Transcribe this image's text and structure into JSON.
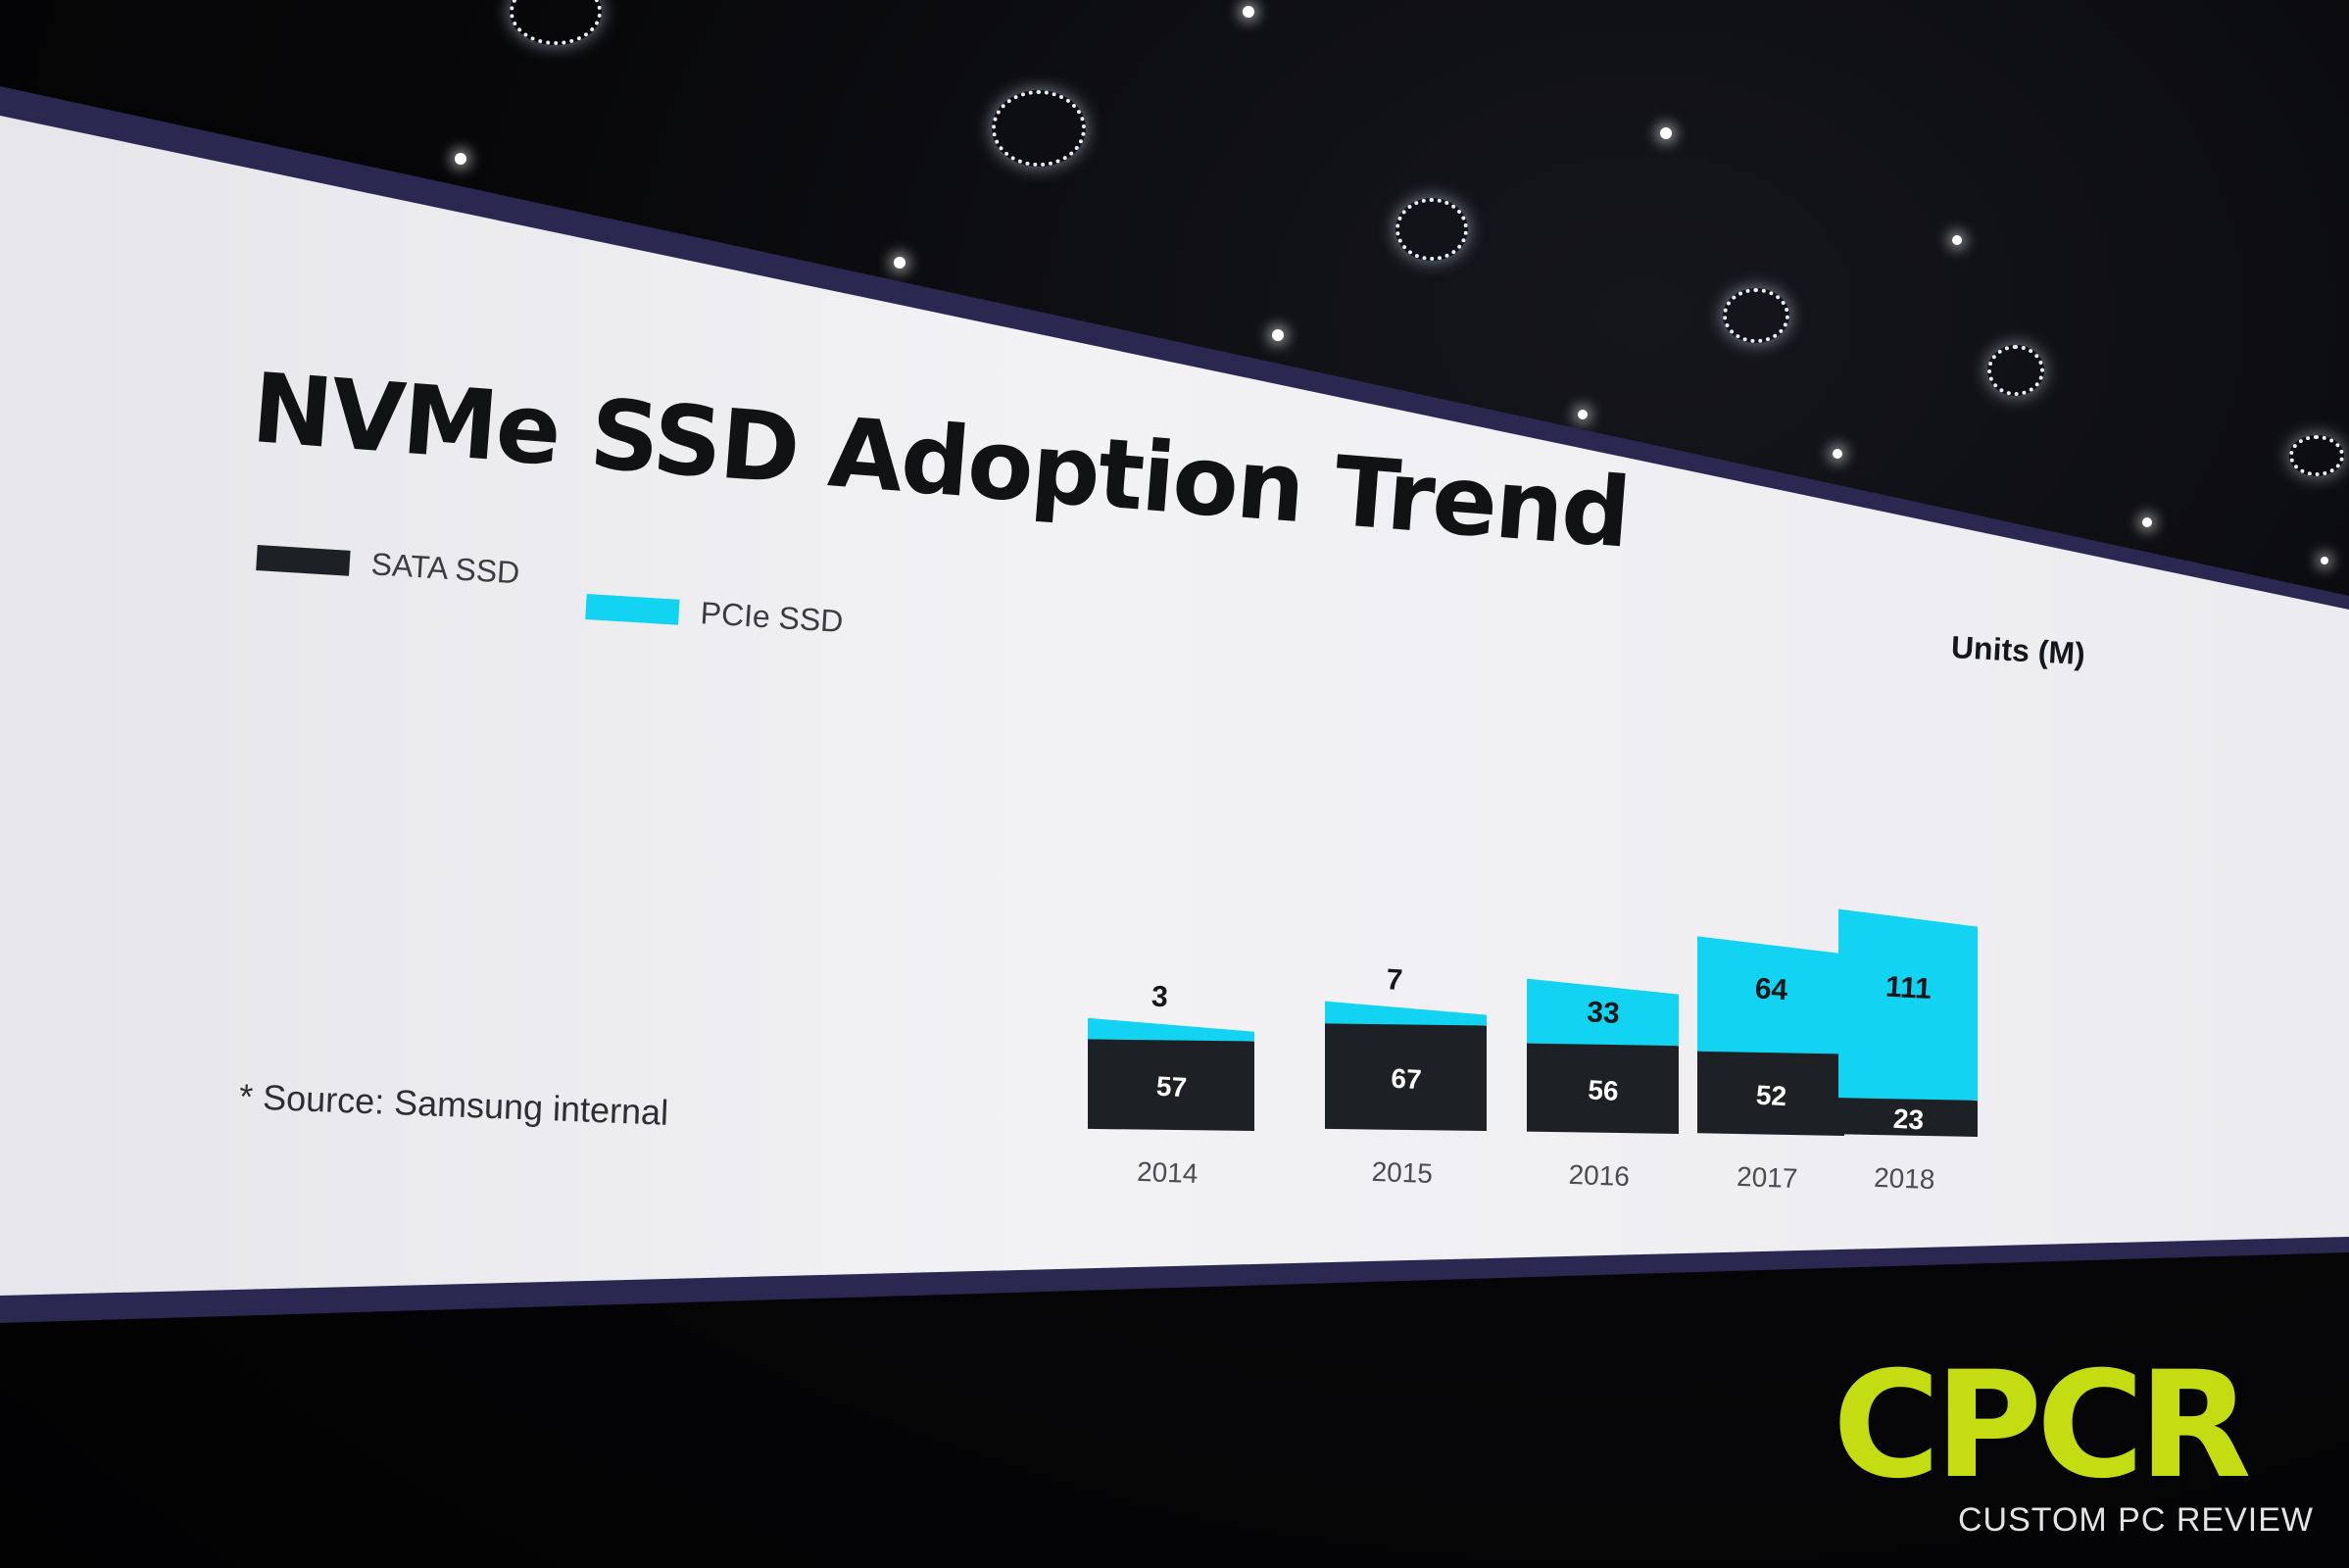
{
  "slide": {
    "title": "NVMe SSD Adoption Trend",
    "source_note": "* Source: Samsung internal",
    "units_label": "Units (M)"
  },
  "legend": [
    {
      "label": "SATA SSD",
      "color": "#1d2126"
    },
    {
      "label": "PCIe SSD",
      "color": "#12d4f2"
    }
  ],
  "chart_data": {
    "type": "bar",
    "stacked": true,
    "categories": [
      "2014",
      "2015",
      "2016",
      "2017",
      "2018"
    ],
    "series": [
      {
        "name": "SATA SSD",
        "values": [
          57,
          67,
          56,
          52,
          23
        ],
        "color": "#1d2126"
      },
      {
        "name": "PCIe SSD",
        "values": [
          3,
          7,
          33,
          64,
          111
        ],
        "color": "#12d4f2"
      }
    ],
    "ylabel": "Units (M)",
    "ylim": [
      0,
      140
    ],
    "grid": false,
    "legend_position": "top-left"
  },
  "watermark": {
    "mark": "CPCR",
    "text": "CUSTOM PC REVIEW",
    "color": "#c4dc12"
  }
}
